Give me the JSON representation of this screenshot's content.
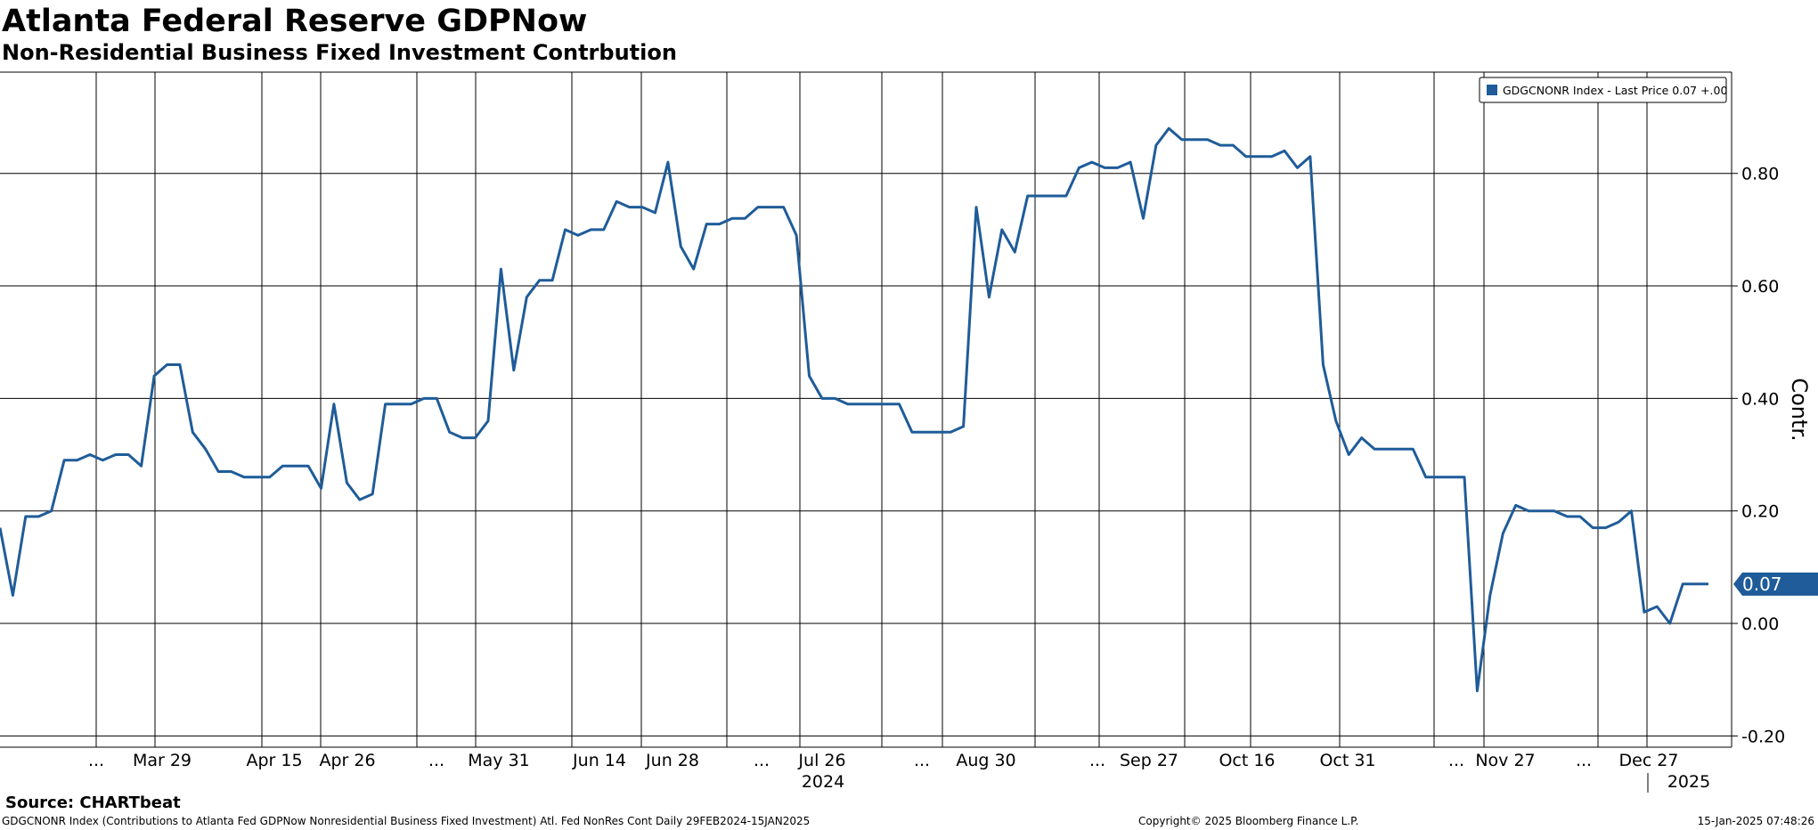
{
  "title": "Atlanta Federal Reserve GDPNow",
  "subtitle": "Non-Residential Business Fixed Investment Contrbution",
  "source": "Source: CHARTbeat",
  "footer": {
    "description": "GDGCNONR Index (Contributions to Atlanta Fed GDPNow Nonresidential Business Fixed Investment) Atl. Fed NonRes Cont  Daily 29FEB2024-15JAN2025",
    "copyright": "Copyright© 2025 Bloomberg Finance L.P.",
    "timestamp": "15-Jan-2025 07:48:26"
  },
  "chart_data": {
    "type": "line",
    "ylabel": "Contr.",
    "ylim": [
      -0.22,
      0.98
    ],
    "y_ticks": [
      -0.2,
      0.0,
      0.2,
      0.4,
      0.6,
      0.8
    ],
    "y_tick_labels": [
      "-0.20",
      "0.00",
      "0.20",
      "0.40",
      "0.60",
      "0.80"
    ],
    "x_tick_labels": [
      "...",
      "Mar 29",
      "Apr 15",
      "Apr 26",
      "...",
      "May 31",
      "Jun 14",
      "Jun 28",
      "...",
      "Jul 26",
      "...",
      "Aug 30",
      "...",
      "Sep 27",
      "Oct 16",
      "Oct 31",
      "...",
      "Nov 27",
      "...",
      "Dec 27"
    ],
    "year_labels": [
      "2024",
      "2025"
    ],
    "grid": true,
    "legend": {
      "position": "top-right",
      "entries": [
        "GDGCNONR Index - Last Price 0.07  +.00"
      ]
    },
    "last_value_label": "0.07",
    "colors": {
      "series": "#1f5c99",
      "last_badge": "#1f5c99",
      "grid": "#000000"
    },
    "series": [
      {
        "name": "GDGCNONR Index",
        "values": [
          0.17,
          0.05,
          0.19,
          0.19,
          0.2,
          0.29,
          0.29,
          0.3,
          0.29,
          0.3,
          0.3,
          0.28,
          0.44,
          0.46,
          0.46,
          0.34,
          0.31,
          0.27,
          0.27,
          0.26,
          0.26,
          0.26,
          0.28,
          0.28,
          0.28,
          0.24,
          0.39,
          0.25,
          0.22,
          0.23,
          0.39,
          0.39,
          0.39,
          0.4,
          0.4,
          0.34,
          0.33,
          0.33,
          0.36,
          0.63,
          0.45,
          0.58,
          0.61,
          0.61,
          0.7,
          0.69,
          0.7,
          0.7,
          0.75,
          0.74,
          0.74,
          0.73,
          0.82,
          0.67,
          0.63,
          0.71,
          0.71,
          0.72,
          0.72,
          0.74,
          0.74,
          0.74,
          0.69,
          0.44,
          0.4,
          0.4,
          0.39,
          0.39,
          0.39,
          0.39,
          0.39,
          0.34,
          0.34,
          0.34,
          0.34,
          0.35,
          0.74,
          0.58,
          0.7,
          0.66,
          0.76,
          0.76,
          0.76,
          0.76,
          0.81,
          0.82,
          0.81,
          0.81,
          0.82,
          0.72,
          0.85,
          0.88,
          0.86,
          0.86,
          0.86,
          0.85,
          0.85,
          0.83,
          0.83,
          0.83,
          0.84,
          0.81,
          0.83,
          0.46,
          0.36,
          0.3,
          0.33,
          0.31,
          0.31,
          0.31,
          0.31,
          0.26,
          0.26,
          0.26,
          0.26,
          -0.12,
          0.05,
          0.16,
          0.21,
          0.2,
          0.2,
          0.2,
          0.19,
          0.19,
          0.17,
          0.17,
          0.18,
          0.2,
          0.02,
          0.03,
          0.0,
          0.07,
          0.07,
          0.07
        ]
      }
    ]
  }
}
